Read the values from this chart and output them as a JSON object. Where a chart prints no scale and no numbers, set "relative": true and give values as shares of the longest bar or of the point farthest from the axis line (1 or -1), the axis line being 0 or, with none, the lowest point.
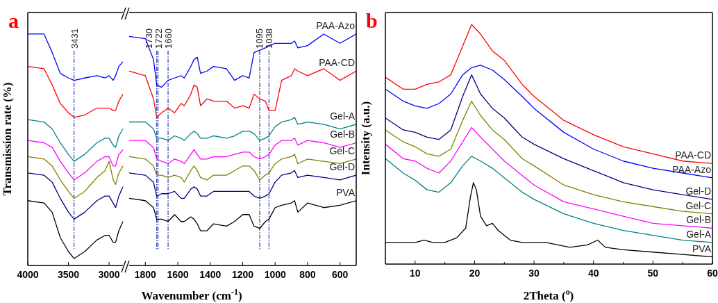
{
  "chart_data": [
    {
      "type": "line",
      "title": "a",
      "ylabel": "Transmission rate (%)",
      "relative": true,
      "xlim": [
        4000,
        2830
      ],
      "xticks": [
        4000,
        3500,
        3000
      ],
      "x": [
        4000,
        3800,
        3700,
        3600,
        3500,
        3430,
        3300,
        3150,
        3050,
        3000,
        2950,
        2920,
        2880,
        2830
      ],
      "ref_lines": [
        {
          "axis": "x",
          "value": 3431,
          "label": "3431",
          "color": "#2a3aa8"
        }
      ],
      "series": [
        {
          "color": "#0000ff",
          "values": [
            1.0,
            1.0,
            0.92,
            0.83,
            0.81,
            0.8,
            0.81,
            0.82,
            0.81,
            0.82,
            0.8,
            0.82,
            0.86,
            0.88
          ]
        },
        {
          "color": "#ff0000",
          "values": [
            0.86,
            0.85,
            0.78,
            0.7,
            0.66,
            0.64,
            0.65,
            0.68,
            0.68,
            0.68,
            0.67,
            0.67,
            0.71,
            0.74
          ]
        },
        {
          "color": "#008080",
          "values": [
            0.63,
            0.62,
            0.59,
            0.53,
            0.48,
            0.45,
            0.48,
            0.53,
            0.55,
            0.55,
            0.52,
            0.51,
            0.56,
            0.59
          ]
        },
        {
          "color": "#ff00ff",
          "values": [
            0.54,
            0.53,
            0.51,
            0.45,
            0.4,
            0.37,
            0.4,
            0.45,
            0.47,
            0.47,
            0.43,
            0.43,
            0.48,
            0.5
          ]
        },
        {
          "color": "#808000",
          "values": [
            0.47,
            0.46,
            0.43,
            0.37,
            0.32,
            0.29,
            0.32,
            0.38,
            0.41,
            0.45,
            0.37,
            0.35,
            0.4,
            0.43
          ]
        },
        {
          "color": "#000080",
          "values": [
            0.4,
            0.39,
            0.36,
            0.29,
            0.23,
            0.2,
            0.23,
            0.28,
            0.3,
            0.3,
            0.27,
            0.25,
            0.3,
            0.34
          ]
        },
        {
          "color": "#000000",
          "values": [
            0.28,
            0.27,
            0.23,
            0.12,
            0.06,
            0.03,
            0.06,
            0.11,
            0.13,
            0.13,
            0.1,
            0.1,
            0.15,
            0.19
          ]
        }
      ]
    },
    {
      "type": "line",
      "xlabel": "Wavenumber (cm$^{-1}$)",
      "relative": true,
      "xlim": [
        1900,
        500
      ],
      "xticks": [
        1800,
        1600,
        1400,
        1200,
        1000,
        800,
        600
      ],
      "x": [
        1900,
        1800,
        1750,
        1730,
        1700,
        1660,
        1620,
        1580,
        1560,
        1520,
        1500,
        1480,
        1460,
        1420,
        1380,
        1300,
        1250,
        1200,
        1160,
        1130,
        1095,
        1060,
        1038,
        1000,
        960,
        900,
        880,
        860,
        800,
        700,
        600,
        500
      ],
      "ref_lines": [
        {
          "axis": "x",
          "value": 1730,
          "label": "1730",
          "color": "#2a3aa8"
        },
        {
          "axis": "x",
          "value": 1722,
          "label": "1722",
          "color": "#2a3aa8"
        },
        {
          "axis": "x",
          "value": 1660,
          "label": "1660",
          "color": "#2a3aa8"
        },
        {
          "axis": "x",
          "value": 1095,
          "label": "1095",
          "color": "#2a3aa8"
        },
        {
          "axis": "x",
          "value": 1038,
          "label": "1038",
          "color": "#2a3aa8"
        }
      ],
      "series": [
        {
          "name": "PAA-Azo",
          "color": "#0000ff",
          "values": [
            0.99,
            0.98,
            0.89,
            0.78,
            0.77,
            0.8,
            0.81,
            0.82,
            0.81,
            0.86,
            0.89,
            0.9,
            0.83,
            0.84,
            0.86,
            0.85,
            0.8,
            0.82,
            0.81,
            0.92,
            0.93,
            0.94,
            0.95,
            0.96,
            0.96,
            0.96,
            0.97,
            0.94,
            0.95,
            1.0,
            0.96,
            1.0
          ]
        },
        {
          "name": "PAA-CD",
          "color": "#ff0000",
          "values": [
            0.84,
            0.82,
            0.72,
            0.64,
            0.66,
            0.68,
            0.66,
            0.7,
            0.69,
            0.74,
            0.78,
            0.77,
            0.69,
            0.72,
            0.71,
            0.71,
            0.68,
            0.69,
            0.68,
            0.74,
            0.72,
            0.71,
            0.67,
            0.67,
            0.8,
            0.82,
            0.85,
            0.84,
            0.82,
            0.85,
            0.8,
            0.84
          ]
        },
        {
          "name": "Gel-A",
          "color": "#008080",
          "values": [
            0.62,
            0.62,
            0.59,
            0.55,
            0.55,
            0.54,
            0.56,
            0.55,
            0.54,
            0.57,
            0.58,
            0.57,
            0.55,
            0.55,
            0.56,
            0.55,
            0.56,
            0.58,
            0.58,
            0.57,
            0.54,
            0.55,
            0.56,
            0.6,
            0.62,
            0.63,
            0.64,
            0.61,
            0.62,
            0.61,
            0.59,
            0.61
          ]
        },
        {
          "name": "Gel-B",
          "color": "#ff00ff",
          "values": [
            0.54,
            0.54,
            0.51,
            0.46,
            0.45,
            0.44,
            0.46,
            0.45,
            0.44,
            0.48,
            0.5,
            0.48,
            0.46,
            0.46,
            0.47,
            0.47,
            0.48,
            0.49,
            0.49,
            0.47,
            0.46,
            0.47,
            0.48,
            0.52,
            0.54,
            0.54,
            0.55,
            0.52,
            0.54,
            0.53,
            0.51,
            0.53
          ]
        },
        {
          "name": "Gel-C",
          "color": "#808000",
          "values": [
            0.47,
            0.46,
            0.43,
            0.39,
            0.39,
            0.38,
            0.39,
            0.38,
            0.36,
            0.41,
            0.43,
            0.41,
            0.38,
            0.37,
            0.39,
            0.39,
            0.41,
            0.43,
            0.43,
            0.41,
            0.37,
            0.39,
            0.4,
            0.44,
            0.46,
            0.47,
            0.48,
            0.44,
            0.46,
            0.45,
            0.44,
            0.46
          ]
        },
        {
          "name": "Gel-D",
          "color": "#000080",
          "values": [
            0.4,
            0.39,
            0.36,
            0.3,
            0.31,
            0.31,
            0.32,
            0.29,
            0.29,
            0.33,
            0.34,
            0.33,
            0.3,
            0.3,
            0.32,
            0.32,
            0.32,
            0.32,
            0.32,
            0.3,
            0.29,
            0.3,
            0.31,
            0.36,
            0.39,
            0.4,
            0.41,
            0.38,
            0.39,
            0.38,
            0.37,
            0.39
          ]
        },
        {
          "name": "PVA",
          "color": "#000000",
          "values": [
            0.29,
            0.28,
            0.25,
            0.2,
            0.2,
            0.19,
            0.22,
            0.19,
            0.19,
            0.21,
            0.2,
            0.18,
            0.15,
            0.15,
            0.18,
            0.17,
            0.19,
            0.22,
            0.22,
            0.17,
            0.16,
            0.19,
            0.2,
            0.25,
            0.26,
            0.27,
            0.28,
            0.23,
            0.27,
            0.25,
            0.26,
            0.28
          ]
        }
      ]
    },
    {
      "type": "line",
      "title": "b",
      "xlabel": "2Theta ($^{o}$)",
      "ylabel": "Intensity (a.u.)",
      "relative": true,
      "xlim": [
        5,
        60
      ],
      "xticks": [
        10,
        {
          "value": 15,
          "label": null
        },
        20,
        {
          "value": 25,
          "label": null
        },
        30,
        {
          "value": 35,
          "label": null
        },
        40,
        {
          "value": 45,
          "label": null
        },
        50,
        {
          "value": 55,
          "label": null
        },
        60
      ],
      "x": [
        5,
        8,
        10,
        12,
        14,
        16,
        18,
        19.5,
        21,
        23,
        25,
        28,
        30,
        35,
        40,
        45,
        50,
        55,
        60
      ],
      "series": [
        {
          "name": "PAA-CD",
          "color": "#ff0000",
          "values": [
            0.78,
            0.73,
            0.73,
            0.75,
            0.76,
            0.79,
            0.91,
            1.0,
            0.96,
            0.89,
            0.85,
            0.75,
            0.7,
            0.6,
            0.54,
            0.49,
            0.46,
            0.43,
            0.42
          ]
        },
        {
          "name": "PAA-Azo",
          "color": "#0000ff",
          "values": [
            0.73,
            0.68,
            0.66,
            0.65,
            0.67,
            0.71,
            0.79,
            0.82,
            0.83,
            0.81,
            0.77,
            0.7,
            0.65,
            0.55,
            0.48,
            0.43,
            0.4,
            0.38,
            0.36
          ]
        },
        {
          "name": "Gel-D",
          "color": "#000080",
          "values": [
            0.61,
            0.56,
            0.55,
            0.53,
            0.52,
            0.56,
            0.7,
            0.79,
            0.71,
            0.65,
            0.61,
            0.53,
            0.5,
            0.44,
            0.39,
            0.34,
            0.31,
            0.29,
            0.27
          ]
        },
        {
          "name": "Gel-C",
          "color": "#808000",
          "values": [
            0.56,
            0.51,
            0.49,
            0.46,
            0.45,
            0.48,
            0.6,
            0.68,
            0.62,
            0.56,
            0.52,
            0.44,
            0.41,
            0.33,
            0.29,
            0.26,
            0.24,
            0.22,
            0.21
          ]
        },
        {
          "name": "Gel-B",
          "color": "#ff00ff",
          "values": [
            0.5,
            0.44,
            0.43,
            0.4,
            0.38,
            0.43,
            0.51,
            0.57,
            0.53,
            0.48,
            0.43,
            0.37,
            0.33,
            0.26,
            0.23,
            0.2,
            0.17,
            0.16,
            0.15
          ]
        },
        {
          "name": "Gel-A",
          "color": "#008080",
          "values": [
            0.44,
            0.38,
            0.35,
            0.31,
            0.3,
            0.34,
            0.41,
            0.45,
            0.43,
            0.4,
            0.36,
            0.3,
            0.27,
            0.21,
            0.17,
            0.14,
            0.12,
            0.1,
            0.09
          ]
        },
        {
          "name": "PVA",
          "color": "#000000",
          "x": [
            5,
            8,
            10,
            11.5,
            13,
            15,
            17,
            18.5,
            19.3,
            19.8,
            20.3,
            21,
            22,
            23,
            24,
            26,
            28,
            32,
            36,
            39,
            40.7,
            42,
            45,
            50,
            55,
            60
          ],
          "values": [
            0.09,
            0.09,
            0.09,
            0.1,
            0.09,
            0.09,
            0.11,
            0.15,
            0.28,
            0.34,
            0.31,
            0.2,
            0.16,
            0.17,
            0.14,
            0.1,
            0.09,
            0.09,
            0.07,
            0.08,
            0.1,
            0.07,
            0.06,
            0.05,
            0.04,
            0.03
          ]
        }
      ]
    }
  ]
}
